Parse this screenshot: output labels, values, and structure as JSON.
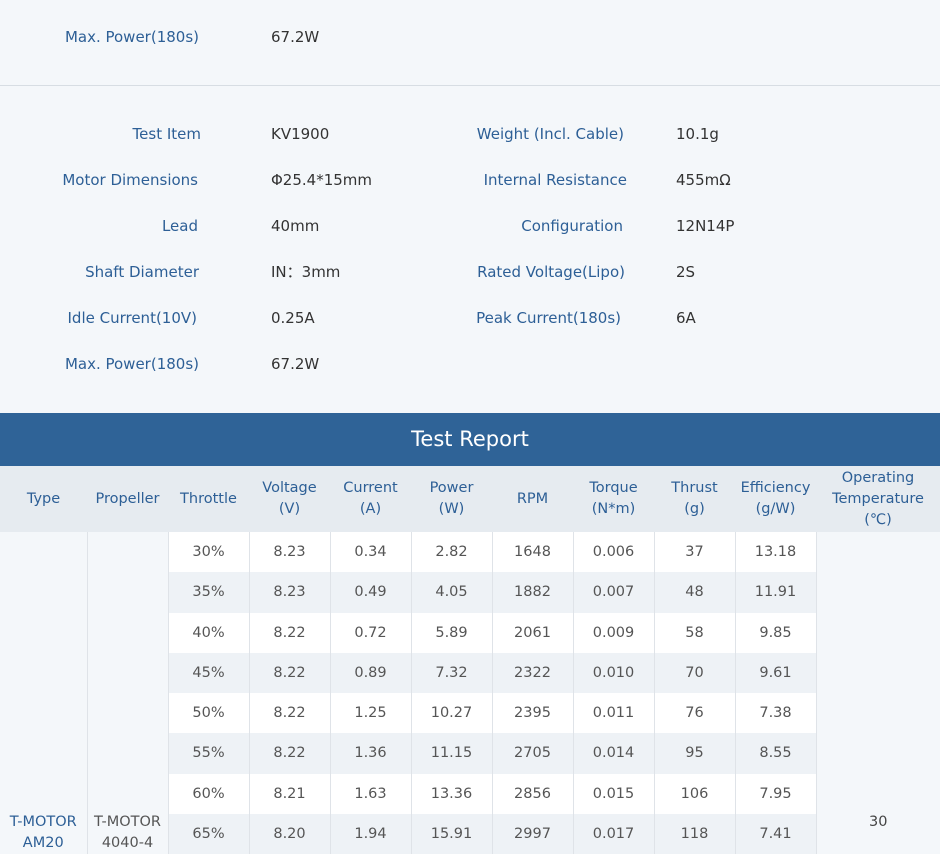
{
  "top_spec": {
    "label": "Max. Power(180s)",
    "value": "67.2W"
  },
  "specs_left": [
    {
      "label": "Test Item",
      "value": "KV1900"
    },
    {
      "label": "Motor Dimensions",
      "value": "Φ25.4*15mm"
    },
    {
      "label": "Lead",
      "value": "40mm"
    },
    {
      "label": "Shaft Diameter",
      "value": "IN：3mm"
    },
    {
      "label": "Idle Current(10V)",
      "value": "0.25A"
    },
    {
      "label": "Max. Power(180s)",
      "value": "67.2W"
    }
  ],
  "specs_right": [
    {
      "label": "Weight (Incl. Cable)",
      "value": "10.1g"
    },
    {
      "label": "Internal Resistance",
      "value": "455mΩ"
    },
    {
      "label": "Configuration",
      "value": "12N14P"
    },
    {
      "label": "Rated Voltage(Lipo)",
      "value": "2S"
    },
    {
      "label": "Peak Current(180s)",
      "value": "6A"
    }
  ],
  "report": {
    "title": "Test Report",
    "headers": [
      [
        "Type"
      ],
      [
        "Propeller"
      ],
      [
        "Throttle"
      ],
      [
        "Voltage",
        "(V)"
      ],
      [
        "Current",
        "(A)"
      ],
      [
        "Power",
        "(W)"
      ],
      [
        "RPM"
      ],
      [
        "Torque",
        "(N*m)"
      ],
      [
        "Thrust",
        "(g)"
      ],
      [
        "Efficiency",
        "(g/W)"
      ],
      [
        "Operating",
        "Temperature",
        "(℃)"
      ]
    ],
    "type_value": [
      "T-MOTOR",
      "AM20"
    ],
    "propeller_value": [
      "T-MOTOR",
      "4040-4"
    ],
    "temperature_value": "30",
    "rows": [
      [
        "30%",
        "8.23",
        "0.34",
        "2.82",
        "1648",
        "0.006",
        "37",
        "13.18"
      ],
      [
        "35%",
        "8.23",
        "0.49",
        "4.05",
        "1882",
        "0.007",
        "48",
        "11.91"
      ],
      [
        "40%",
        "8.22",
        "0.72",
        "5.89",
        "2061",
        "0.009",
        "58",
        "9.85"
      ],
      [
        "45%",
        "8.22",
        "0.89",
        "7.32",
        "2322",
        "0.010",
        "70",
        "9.61"
      ],
      [
        "50%",
        "8.22",
        "1.25",
        "10.27",
        "2395",
        "0.011",
        "76",
        "7.38"
      ],
      [
        "55%",
        "8.22",
        "1.36",
        "11.15",
        "2705",
        "0.014",
        "95",
        "8.55"
      ],
      [
        "60%",
        "8.21",
        "1.63",
        "13.36",
        "2856",
        "0.015",
        "106",
        "7.95"
      ],
      [
        "65%",
        "8.20",
        "1.94",
        "15.91",
        "2997",
        "0.017",
        "118",
        "7.41"
      ]
    ]
  }
}
